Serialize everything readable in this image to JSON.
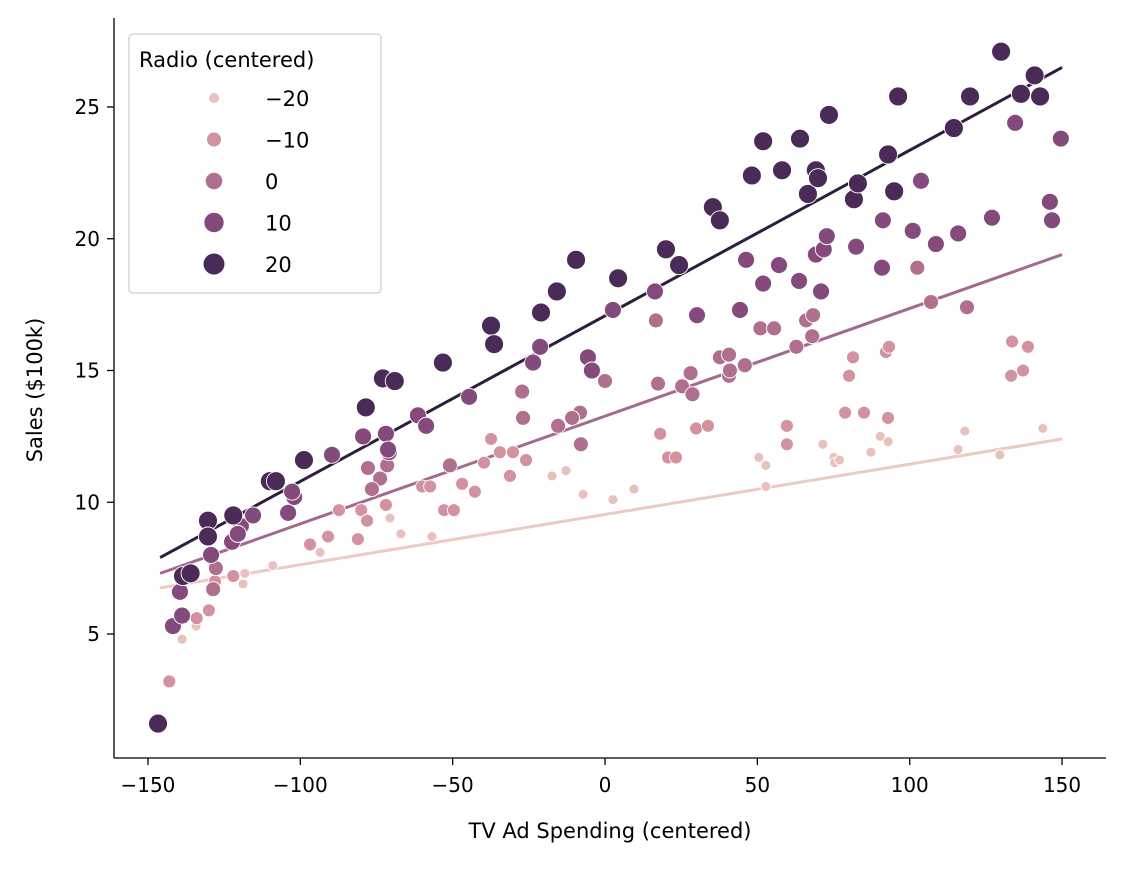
{
  "chart_data": {
    "type": "scatter",
    "title": "",
    "xlabel": "TV Ad Spending (centered)",
    "ylabel": "Sales ($100k)",
    "xlim": [
      -160,
      165
    ],
    "ylim": [
      0.3,
      28.3
    ],
    "xticks": [
      -150,
      -100,
      -50,
      0,
      50,
      100,
      150
    ],
    "yticks": [
      5,
      10,
      15,
      20,
      25
    ],
    "xtick_labels": [
      "−150",
      "−100",
      "−50",
      "0",
      "50",
      "100",
      "150"
    ],
    "ytick_labels": [
      "5",
      "10",
      "15",
      "20",
      "25"
    ],
    "grid": false,
    "legend": {
      "title": "Radio (centered)",
      "placement": "top-left",
      "entries": [
        "−20",
        "−10",
        "0",
        "10",
        "20"
      ]
    },
    "series": [
      {
        "name": "−20",
        "hue": -20,
        "color": "#e8c1bd",
        "size": 5,
        "points": [
          [
            -138.8,
            4.8
          ],
          [
            -134.2,
            5.3
          ],
          [
            -118.8,
            6.9
          ],
          [
            -118.2,
            7.3
          ],
          [
            -109,
            7.6
          ],
          [
            -93.5,
            8.1
          ],
          [
            -70.6,
            9.4
          ],
          [
            -67,
            8.8
          ],
          [
            -56.8,
            8.7
          ],
          [
            -49.2,
            9.6
          ],
          [
            -17.4,
            11.0
          ],
          [
            -12.8,
            11.2
          ],
          [
            -7.2,
            10.3
          ],
          [
            2.6,
            10.1
          ],
          [
            9.5,
            10.5
          ],
          [
            50.5,
            11.7
          ],
          [
            52.8,
            11.4
          ],
          [
            52.8,
            10.6
          ],
          [
            71.5,
            12.2
          ],
          [
            75.1,
            11.7
          ],
          [
            75.4,
            11.5
          ],
          [
            77,
            11.6
          ],
          [
            87.3,
            11.9
          ],
          [
            90.3,
            12.5
          ],
          [
            92.9,
            12.3
          ],
          [
            115.9,
            12.0
          ],
          [
            118.1,
            12.7
          ],
          [
            129.6,
            11.8
          ],
          [
            143.7,
            12.8
          ]
        ]
      },
      {
        "name": "−10",
        "hue": -10,
        "color": "#d3929f",
        "size": 6.5,
        "points": [
          [
            -143,
            3.2
          ],
          [
            -134,
            5.6
          ],
          [
            -130,
            5.9
          ],
          [
            -128,
            7.0
          ],
          [
            -122,
            7.2
          ],
          [
            -96.8,
            8.4
          ],
          [
            -90.9,
            8.7
          ],
          [
            -87.3,
            9.7
          ],
          [
            -81.1,
            8.6
          ],
          [
            -80,
            9.7
          ],
          [
            -78.1,
            9.3
          ],
          [
            -71.9,
            9.9
          ],
          [
            -60,
            10.6
          ],
          [
            -57.4,
            10.6
          ],
          [
            -52.8,
            9.7
          ],
          [
            -49.6,
            9.7
          ],
          [
            -46.9,
            10.7
          ],
          [
            -42.7,
            10.4
          ],
          [
            -39.7,
            11.5
          ],
          [
            -37.4,
            12.4
          ],
          [
            -34.5,
            11.9
          ],
          [
            -30.2,
            11.9
          ],
          [
            -31.2,
            11.0
          ],
          [
            -25.9,
            11.6
          ],
          [
            18.1,
            12.6
          ],
          [
            20.7,
            11.7
          ],
          [
            23.3,
            11.7
          ],
          [
            29.9,
            12.8
          ],
          [
            33.8,
            12.9
          ],
          [
            59.7,
            12.9
          ],
          [
            59.7,
            12.2
          ],
          [
            78.8,
            13.4
          ],
          [
            80.1,
            14.8
          ],
          [
            81.4,
            15.5
          ],
          [
            85,
            13.4
          ],
          [
            92.2,
            15.7
          ],
          [
            93.2,
            15.9
          ],
          [
            92.9,
            13.2
          ],
          [
            133.6,
            16.1
          ],
          [
            133.3,
            14.8
          ],
          [
            137.2,
            15.0
          ],
          [
            138.8,
            15.9
          ]
        ]
      },
      {
        "name": "0",
        "hue": 0,
        "color": "#b06f8f",
        "size": 7.5,
        "points": [
          [
            -127.7,
            7.5
          ],
          [
            -128.6,
            6.7
          ],
          [
            -122.7,
            8.5
          ],
          [
            -77.8,
            11.3
          ],
          [
            -71.5,
            11.4
          ],
          [
            -73.8,
            10.9
          ],
          [
            -76.5,
            10.5
          ],
          [
            -50.9,
            11.4
          ],
          [
            -27.2,
            14.2
          ],
          [
            -26.9,
            13.2
          ],
          [
            -15.4,
            12.9
          ],
          [
            -7.9,
            12.2
          ],
          [
            -8.2,
            13.4
          ],
          [
            -10.8,
            13.2
          ],
          [
            0,
            14.6
          ],
          [
            17.4,
            14.5
          ],
          [
            25.3,
            14.4
          ],
          [
            28.1,
            14.9
          ],
          [
            28.7,
            14.1
          ],
          [
            16.7,
            16.9
          ],
          [
            37.7,
            15.5
          ],
          [
            40.7,
            15.6
          ],
          [
            40.7,
            14.8
          ],
          [
            41,
            15.0
          ],
          [
            45.9,
            15.2
          ],
          [
            51,
            16.6
          ],
          [
            55.5,
            16.6
          ],
          [
            62.8,
            15.9
          ],
          [
            68,
            16.3
          ],
          [
            66,
            16.9
          ],
          [
            68.3,
            17.1
          ],
          [
            107,
            17.6
          ],
          [
            118.8,
            17.4
          ],
          [
            102.5,
            18.9
          ]
        ]
      },
      {
        "name": "10",
        "hue": 10,
        "color": "#844a7b",
        "size": 8.5,
        "points": [
          [
            -141.8,
            5.3
          ],
          [
            -138.8,
            5.7
          ],
          [
            -139.5,
            6.6
          ],
          [
            -129.3,
            8.0
          ],
          [
            -119.5,
            9.1
          ],
          [
            -122.4,
            8.5
          ],
          [
            -120.5,
            8.8
          ],
          [
            -115.5,
            9.5
          ],
          [
            -104,
            9.6
          ],
          [
            -102,
            10.2
          ],
          [
            -102.7,
            10.4
          ],
          [
            -89.6,
            11.8
          ],
          [
            -79.4,
            12.5
          ],
          [
            -71.9,
            12.6
          ],
          [
            -70.9,
            11.9
          ],
          [
            -71.2,
            12.0
          ],
          [
            -61.4,
            13.3
          ],
          [
            -58.7,
            12.9
          ],
          [
            -44.6,
            14.0
          ],
          [
            -23.6,
            15.3
          ],
          [
            -21.3,
            15.9
          ],
          [
            -5.6,
            15.5
          ],
          [
            -4.3,
            15.0
          ],
          [
            2.6,
            17.3
          ],
          [
            30.2,
            17.1
          ],
          [
            16.4,
            18.0
          ],
          [
            46.3,
            19.2
          ],
          [
            44.3,
            17.3
          ],
          [
            51.9,
            18.3
          ],
          [
            57.1,
            19.0
          ],
          [
            63.7,
            18.4
          ],
          [
            70.9,
            18.0
          ],
          [
            69.2,
            19.4
          ],
          [
            71.8,
            19.6
          ],
          [
            72.8,
            20.1
          ],
          [
            82.4,
            19.7
          ],
          [
            90.9,
            18.9
          ],
          [
            91.2,
            20.7
          ],
          [
            101,
            20.3
          ],
          [
            103.7,
            22.2
          ],
          [
            108.6,
            19.8
          ],
          [
            115.9,
            20.2
          ],
          [
            134.6,
            24.4
          ],
          [
            149.6,
            23.8
          ],
          [
            146,
            21.4
          ],
          [
            146.7,
            20.7
          ],
          [
            127,
            20.8
          ]
        ]
      },
      {
        "name": "20",
        "hue": 20,
        "color": "#4a2a57",
        "size": 9.5,
        "points": [
          [
            -146.7,
            1.6
          ],
          [
            -130.3,
            9.3
          ],
          [
            -130.3,
            8.7
          ],
          [
            -138.5,
            7.2
          ],
          [
            -136,
            7.3
          ],
          [
            -122,
            9.5
          ],
          [
            -110,
            10.8
          ],
          [
            -108,
            10.8
          ],
          [
            -98.8,
            11.6
          ],
          [
            -78.5,
            13.6
          ],
          [
            -72.9,
            14.7
          ],
          [
            -69,
            14.6
          ],
          [
            -53.2,
            15.3
          ],
          [
            -37.4,
            16.7
          ],
          [
            -36.4,
            16.0
          ],
          [
            -21,
            17.2
          ],
          [
            -15.8,
            18.0
          ],
          [
            -9.5,
            19.2
          ],
          [
            4.3,
            18.5
          ],
          [
            20,
            19.6
          ],
          [
            24.3,
            19.0
          ],
          [
            35.4,
            21.2
          ],
          [
            37.7,
            20.7
          ],
          [
            48.2,
            22.4
          ],
          [
            51.9,
            23.7
          ],
          [
            58.1,
            22.6
          ],
          [
            64,
            23.8
          ],
          [
            66.6,
            21.7
          ],
          [
            69.2,
            22.6
          ],
          [
            69.9,
            22.3
          ],
          [
            73.5,
            24.7
          ],
          [
            81.7,
            21.5
          ],
          [
            83,
            22.1
          ],
          [
            92.9,
            23.2
          ],
          [
            94.9,
            21.8
          ],
          [
            96.2,
            25.4
          ],
          [
            114.5,
            24.2
          ],
          [
            119.8,
            25.4
          ],
          [
            130,
            27.1
          ],
          [
            136.5,
            25.5
          ],
          [
            141,
            26.2
          ],
          [
            142.8,
            25.4
          ]
        ]
      }
    ],
    "regression_lines": [
      {
        "name": "−20",
        "color": "#ebcbc4",
        "x": [
          -146,
          150
        ],
        "y": [
          6.75,
          12.4
        ]
      },
      {
        "name": "0",
        "color": "#a3698f",
        "x": [
          -146,
          150
        ],
        "y": [
          7.3,
          19.4
        ]
      },
      {
        "name": "20",
        "color": "#2d1e3e",
        "x": [
          -146,
          150
        ],
        "y": [
          7.9,
          26.5
        ]
      }
    ]
  }
}
